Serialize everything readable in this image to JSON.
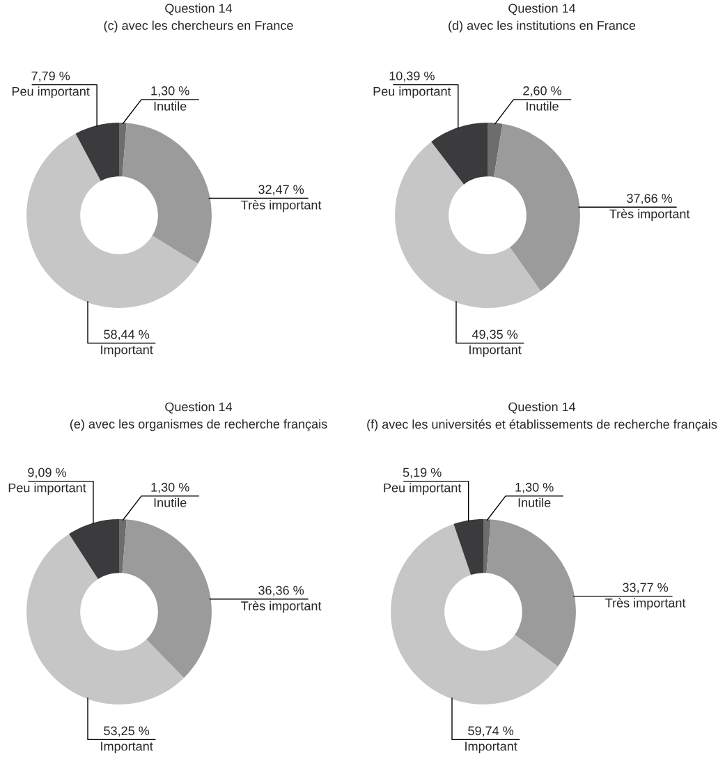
{
  "chart_data": [
    {
      "type": "donut",
      "title": "Question 14\n(c) avec les chercheurs en France",
      "categories": [
        "Inutile",
        "Très important",
        "Important",
        "Peu important"
      ],
      "values": [
        1.3,
        32.47,
        58.44,
        7.79
      ],
      "value_labels": [
        "1,30 %",
        "32,47 %",
        "58,44 %",
        "7,79 %"
      ],
      "colors": [
        "#6d6d6e",
        "#9b9b9c",
        "#c6c6c7",
        "#3b3b3d"
      ],
      "legend": false
    },
    {
      "type": "donut",
      "title": "Question 14\n(d) avec les institutions en France",
      "categories": [
        "Inutile",
        "Très important",
        "Important",
        "Peu important"
      ],
      "values": [
        2.6,
        37.66,
        49.35,
        10.39
      ],
      "value_labels": [
        "2,60 %",
        "37,66 %",
        "49,35 %",
        "10,39 %"
      ],
      "colors": [
        "#6d6d6e",
        "#9b9b9c",
        "#c6c6c7",
        "#3b3b3d"
      ],
      "legend": false
    },
    {
      "type": "donut",
      "title": "Question 14\n(e) avec les organismes de recherche français",
      "categories": [
        "Inutile",
        "Très important",
        "Important",
        "Peu important"
      ],
      "values": [
        1.3,
        36.36,
        53.25,
        9.09
      ],
      "value_labels": [
        "1,30 %",
        "36,36 %",
        "53,25 %",
        "9,09 %"
      ],
      "colors": [
        "#6d6d6e",
        "#9b9b9c",
        "#c6c6c7",
        "#3b3b3d"
      ],
      "legend": false
    },
    {
      "type": "donut",
      "title": "Question 14\n(f) avec les universités et établissements de recherche français",
      "categories": [
        "Inutile",
        "Très important",
        "Important",
        "Peu important"
      ],
      "values": [
        1.3,
        33.77,
        59.74,
        5.19
      ],
      "value_labels": [
        "1,30 %",
        "33,77 %",
        "59,74 %",
        "5,19 %"
      ],
      "colors": [
        "#6d6d6e",
        "#9b9b9c",
        "#c6c6c7",
        "#3b3b3d"
      ],
      "legend": false
    }
  ]
}
